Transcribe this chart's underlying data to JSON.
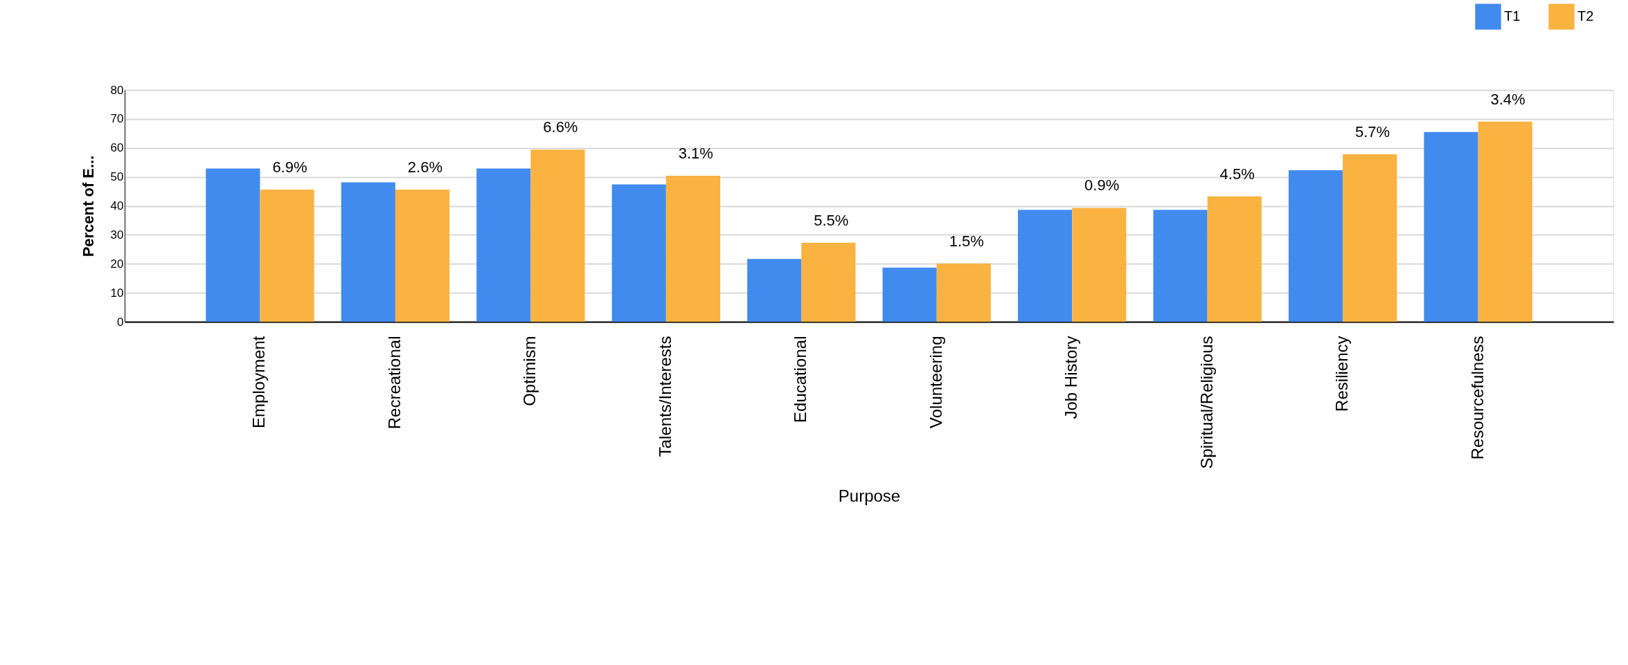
{
  "chart_data": {
    "type": "bar",
    "xlabel": "Purpose",
    "ylabel": "Percent  of E...",
    "categories": [
      "Employment",
      "Recreational",
      "Optimism",
      "Talents/Interests",
      "Educational",
      "Volunteering",
      "Job History",
      "Spiritual/Religious",
      "Resiliency",
      "Resourcefulness"
    ],
    "series": [
      {
        "name": "T1",
        "color": "#418bee",
        "values": [
          52.9,
          48.1,
          52.9,
          47.4,
          21.7,
          18.7,
          38.6,
          38.6,
          52.3,
          65.5
        ]
      },
      {
        "name": "T2",
        "color": "#fab240",
        "values": [
          45.6,
          45.6,
          59.4,
          50.4,
          27.3,
          20.1,
          39.3,
          43.3,
          57.8,
          69.1
        ]
      }
    ],
    "annotations": [
      {
        "text": "6.9%",
        "x": "Employment",
        "y": 45.6
      },
      {
        "text": "2.6%",
        "x": "Recreational",
        "y": 45.6
      },
      {
        "text": "6.6%",
        "x": "Optimism",
        "y": 59.4
      },
      {
        "text": "3.1%",
        "x": "Talents/Interests",
        "y": 50.4
      },
      {
        "text": "5.5%",
        "x": "Educational",
        "y": 27.3
      },
      {
        "text": "1.5%",
        "x": "Volunteering",
        "y": 20.1
      },
      {
        "text": "0.9%",
        "x": "Job History",
        "y": 39.3
      },
      {
        "text": "4.5%",
        "x": "Spiritual/Religious",
        "y": 43.3
      },
      {
        "text": "5.7%",
        "x": "Resiliency",
        "y": 57.8
      },
      {
        "text": "3.4%",
        "x": "Resourcefulness",
        "y": 69.1
      }
    ],
    "ylim": [
      0,
      80
    ],
    "yticks": [
      0,
      10,
      20,
      30,
      40,
      50,
      60,
      70,
      80
    ],
    "grid": "y",
    "legend": "top right"
  }
}
